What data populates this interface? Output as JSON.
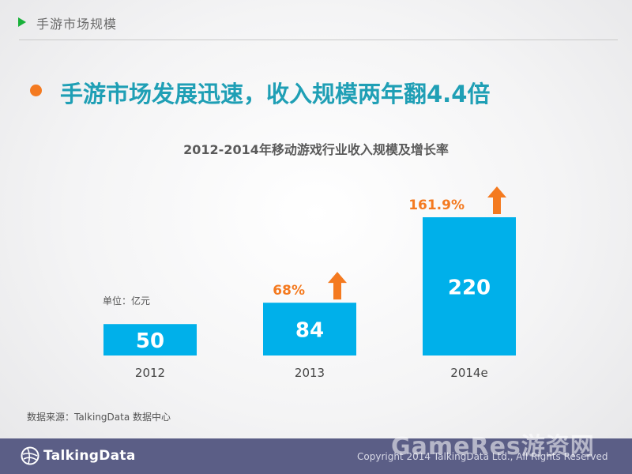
{
  "header": {
    "section_title": "手游市场规模"
  },
  "headline": "手游市场发展迅速，收入规模两年翻4.4倍",
  "unit_label": "单位：亿元",
  "source": "数据来源：TalkingData 数据中心",
  "footer": {
    "logo_text": "TalkingData",
    "copyright": "Copyright 2014 TalkingData Ltd., All Rights Reserved",
    "watermark": "GameRes游资网"
  },
  "colors": {
    "accent_green": "#19b13a",
    "headline": "#1f9fb5",
    "bar": "#00b0ea",
    "growth": "#f47a20",
    "footer": "#5b5e86"
  },
  "chart_data": {
    "type": "bar",
    "title": "2012-2014年移动游戏行业收入规模及增长率",
    "categories": [
      "2012",
      "2013",
      "2014e"
    ],
    "values": [
      50,
      84,
      220
    ],
    "growth_labels": [
      "",
      "68%",
      "161.9%"
    ],
    "unit": "亿元",
    "xlabel": "",
    "ylabel": "",
    "ylim": [
      0,
      220
    ],
    "grid": false,
    "legend": "none"
  }
}
